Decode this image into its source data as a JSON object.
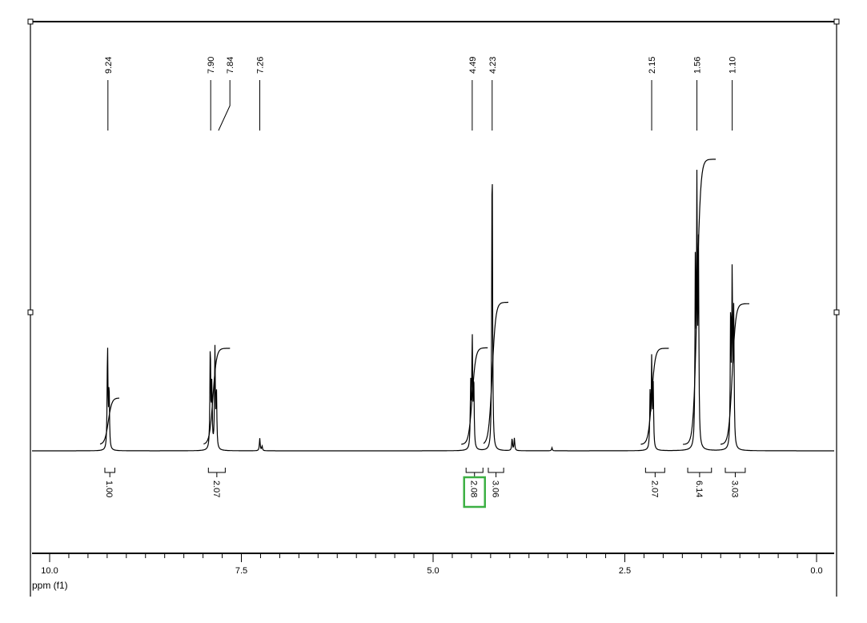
{
  "chart_data": {
    "type": "line",
    "title": "",
    "xlabel": "ppm (f1)",
    "xlim": [
      10.4,
      -0.2
    ],
    "x_reversed": true,
    "x_ticks": [
      "10.0",
      "7.5",
      "5.0",
      "2.5",
      "0.0"
    ],
    "x_tick_values": [
      10.0,
      7.5,
      5.0,
      2.5,
      0.0
    ],
    "minor_tick_step": 0.25,
    "grid": false,
    "peak_labels": [
      "9.24",
      "7.90",
      "7.84",
      "7.26",
      "4.49",
      "4.23",
      "2.15",
      "1.56",
      "1.10"
    ],
    "peak_label_values": [
      9.24,
      7.9,
      7.84,
      7.26,
      4.49,
      4.23,
      2.15,
      1.56,
      1.1
    ],
    "lines": [
      {
        "ppm": 9.245,
        "intensity": 34
      },
      {
        "ppm": 9.225,
        "intensity": 20
      },
      {
        "ppm": 7.905,
        "intensity": 34
      },
      {
        "ppm": 7.885,
        "intensity": 20
      },
      {
        "ppm": 7.845,
        "intensity": 32
      },
      {
        "ppm": 7.825,
        "intensity": 18
      },
      {
        "ppm": 7.26,
        "intensity": 4
      },
      {
        "ppm": 7.23,
        "intensity": 1.5
      },
      {
        "ppm": 4.51,
        "intensity": 20
      },
      {
        "ppm": 4.49,
        "intensity": 36
      },
      {
        "ppm": 4.47,
        "intensity": 22
      },
      {
        "ppm": 4.23,
        "intensity": 100
      },
      {
        "ppm": 3.97,
        "intensity": 4
      },
      {
        "ppm": 3.94,
        "intensity": 4
      },
      {
        "ppm": 3.45,
        "intensity": 1
      },
      {
        "ppm": 2.17,
        "intensity": 18
      },
      {
        "ppm": 2.15,
        "intensity": 28
      },
      {
        "ppm": 2.13,
        "intensity": 20
      },
      {
        "ppm": 1.58,
        "intensity": 60
      },
      {
        "ppm": 1.56,
        "intensity": 81
      },
      {
        "ppm": 1.54,
        "intensity": 62
      },
      {
        "ppm": 1.12,
        "intensity": 45
      },
      {
        "ppm": 1.1,
        "intensity": 55
      },
      {
        "ppm": 1.08,
        "intensity": 42
      }
    ],
    "integrals": [
      {
        "label": "1.00",
        "value": 1.0,
        "from": 9.28,
        "to": 9.15,
        "center": 9.235
      },
      {
        "label": "2.07",
        "value": 2.07,
        "from": 7.93,
        "to": 7.71,
        "center": 7.87
      },
      {
        "label": "2.08",
        "value": 2.08,
        "from": 4.57,
        "to": 4.35,
        "center": 4.49,
        "highlighted": true
      },
      {
        "label": "3.06",
        "value": 3.06,
        "from": 4.28,
        "to": 4.08,
        "center": 4.23
      },
      {
        "label": "2.07",
        "value": 2.07,
        "from": 2.23,
        "to": 1.98,
        "center": 2.15
      },
      {
        "label": "6.14",
        "value": 6.14,
        "from": 1.68,
        "to": 1.37,
        "center": 1.56
      },
      {
        "label": "3.03",
        "value": 3.03,
        "from": 1.19,
        "to": 0.93,
        "center": 1.1
      }
    ],
    "colors": {
      "trace": "#000000",
      "highlight": "#3cb043"
    }
  }
}
